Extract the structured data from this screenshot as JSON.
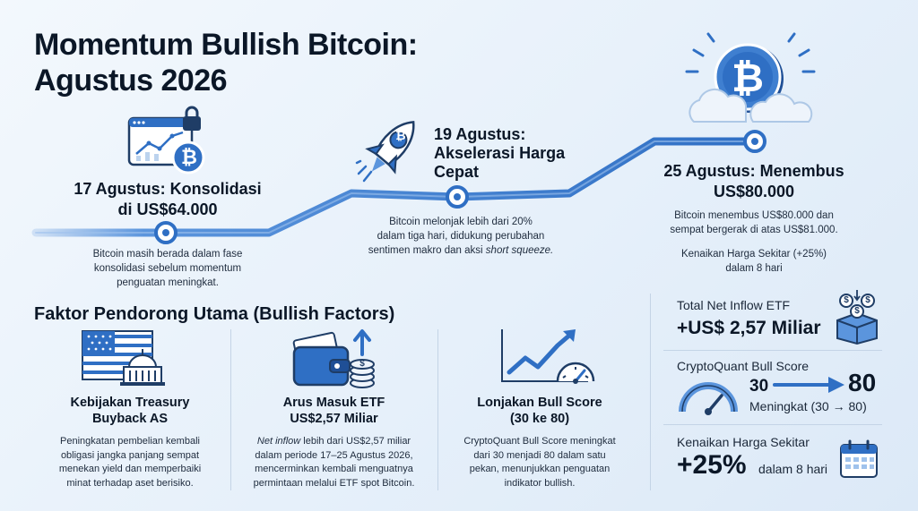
{
  "title_line1": "Momentum Bullish Bitcoin:",
  "title_line2": "Agustus 2026",
  "milestones": [
    {
      "title_line1": "17 Agustus: Konsolidasi",
      "title_line2": "di US$64.000",
      "desc_line1": "Bitcoin masih berada dalam fase",
      "desc_line2": "konsolidasi sebelum momentum",
      "desc_line3": "penguatan meningkat."
    },
    {
      "title_line1": "19 Agustus:",
      "title_line2": "Akselerasi Harga",
      "title_line3": "Cepat",
      "desc_line1": "Bitcoin melonjak lebih dari 20%",
      "desc_line2": "dalam tiga hari, didukung perubahan",
      "desc_line3_pre": "sentimen makro dan aksi ",
      "desc_line3_em": "short squeeze."
    },
    {
      "title_line1": "25 Agustus: Menembus",
      "title_line2": "US$80.000",
      "desc_line1": "Bitcoin menembus US$80.000 dan",
      "desc_line2": "sempat bergerak di atas US$81.000.",
      "note_line1": "Kenaikan Harga Sekitar (+25%)",
      "note_line2": "dalam 8 hari"
    }
  ],
  "factors_title": "Faktor Pendorong Utama (Bullish Factors)",
  "factors": [
    {
      "title_line1": "Kebijakan Treasury",
      "title_line2": "Buyback AS",
      "desc_line1": "Peningkatan pembelian kembali",
      "desc_line2": "obligasi jangka panjang sempat",
      "desc_line3": "menekan yield dan memperbaiki",
      "desc_line4": "minat terhadap aset berisiko."
    },
    {
      "title_line1": "Arus Masuk ETF",
      "title_line2": "US$2,57 Miliar",
      "desc_line1_em": "Net inflow",
      "desc_line1_rest": " lebih dari US$2,57 miliar",
      "desc_line2": "dalam periode 17–25 Agustus 2026,",
      "desc_line3": "mencerminkan kembali menguatnya",
      "desc_line4": "permintaan melalui ETF spot Bitcoin."
    },
    {
      "title_line1": "Lonjakan Bull Score",
      "title_line2": "(30 ke 80)",
      "desc_line1": "CryptoQuant Bull Score meningkat",
      "desc_line2": "dari 30 menjadi 80 dalam satu",
      "desc_line3": "pekan, menunjukkan penguatan",
      "desc_line4": "indikator bullish."
    }
  ],
  "stats": {
    "etf_label": "Total Net Inflow ETF",
    "etf_value": "+US$ 2,57 Miliar",
    "bull_label": "CryptoQuant Bull Score",
    "bull_from": "30",
    "bull_to": "80",
    "bull_sub": "Meningkat (30 → 80)",
    "gain_label": "Kenaikan Harga Sekitar",
    "gain_value": "+25%",
    "gain_sub": "dalam 8 hari"
  },
  "icons": {
    "bitcoin_symbol": "₿",
    "dollar_symbol": "$"
  },
  "colors": {
    "primary_blue": "#2f6fc4",
    "light_blue": "#5b95dd",
    "dark_text": "#0b1727"
  }
}
